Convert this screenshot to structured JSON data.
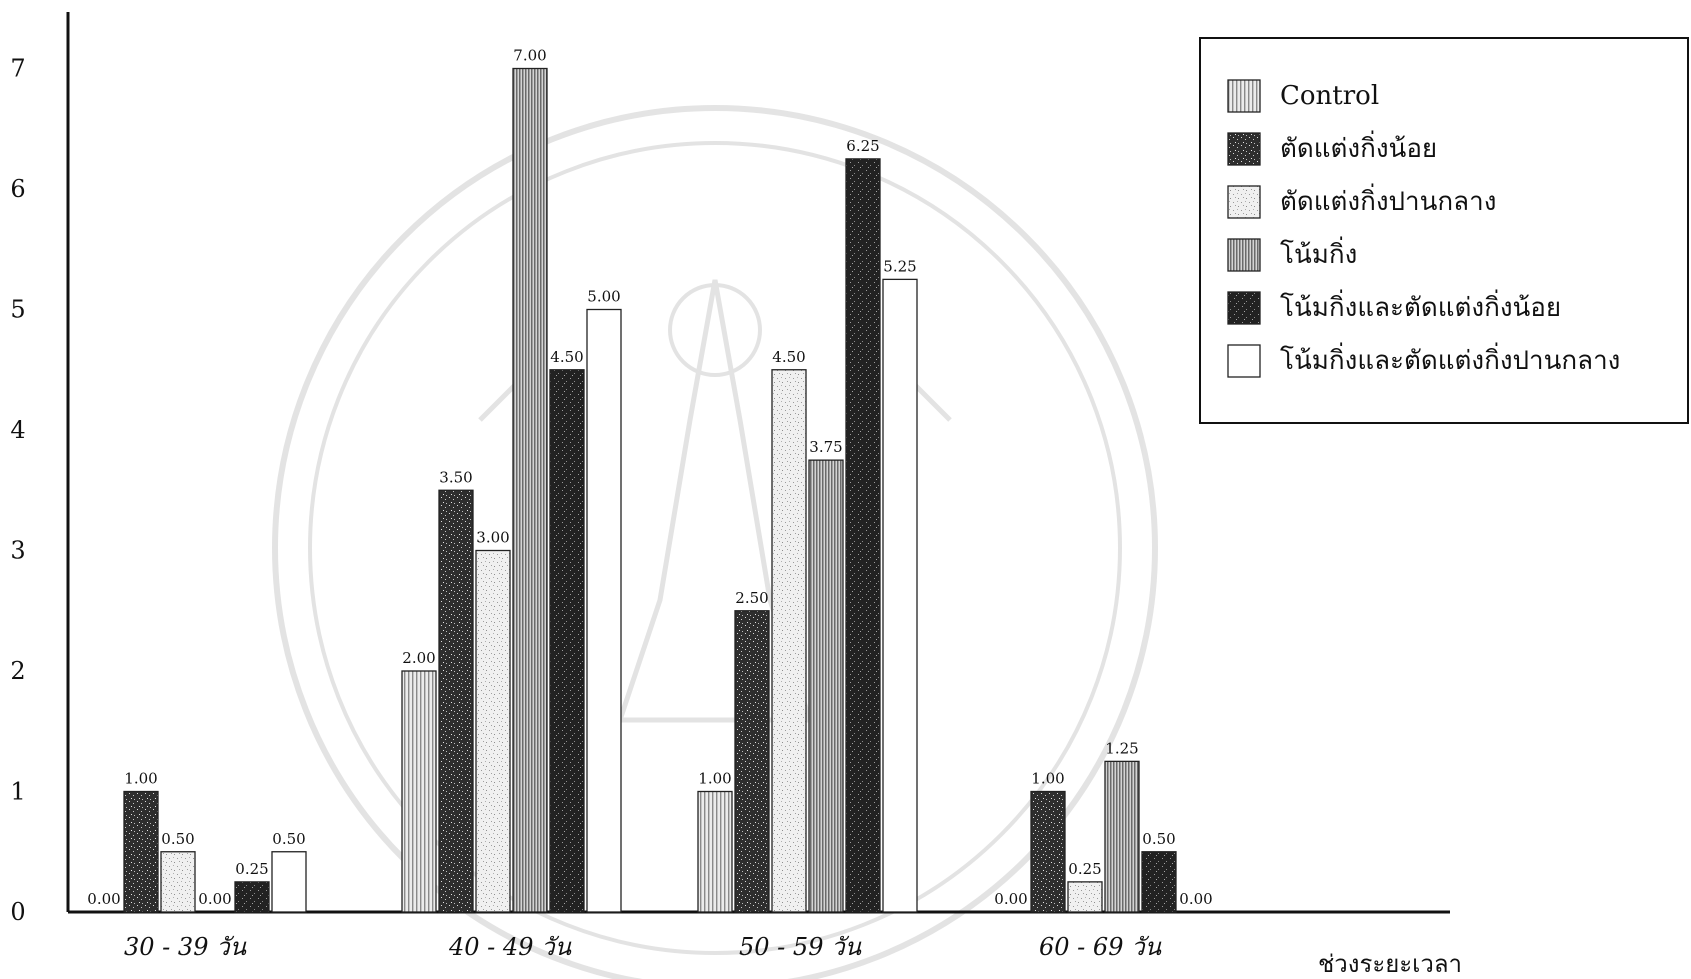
{
  "chart_data": {
    "type": "bar",
    "categories": [
      "30 - 39 วัน",
      "40 - 49 วัน",
      "50 - 59  วัน",
      "60 - 69  วัน"
    ],
    "xlabel": "ช่วงระยะเวลา",
    "ylabel": "",
    "ylim": [
      0,
      7.5
    ],
    "yticks": [
      "0",
      "1",
      "2",
      "3",
      "4",
      "5",
      "6",
      "7"
    ],
    "grid": false,
    "legend_position": "top-right",
    "series": [
      {
        "name": "Control",
        "values": [
          0.0,
          2.0,
          1.0,
          0.0
        ],
        "labels": [
          "0.00",
          "2.00",
          "1.00",
          "0.00"
        ],
        "pattern": "vstripe-light"
      },
      {
        "name": "ตัดแต่งกิ่งน้อย",
        "values": [
          1.0,
          3.5,
          2.5,
          1.0
        ],
        "labels": [
          "1.00",
          "3.50",
          "2.50",
          "1.00"
        ],
        "pattern": "speckle-dark"
      },
      {
        "name": "ตัดแต่งกิ่งปานกลาง",
        "values": [
          0.5,
          3.0,
          4.5,
          0.25
        ],
        "labels": [
          "0.50",
          "3.00",
          "4.50",
          "0.25"
        ],
        "pattern": "speckle-light"
      },
      {
        "name": "โน้มกิ่ง",
        "values": [
          0.0,
          7.0,
          3.75,
          1.25
        ],
        "labels": [
          "0.00",
          "7.00",
          "3.75",
          "1.25"
        ],
        "pattern": "vstripe-medium"
      },
      {
        "name": "โน้มกิ่งและตัดแต่งกิ่งน้อย",
        "values": [
          0.25,
          4.5,
          6.25,
          0.5
        ],
        "labels": [
          "0.25",
          "4.50",
          "6.25",
          "0.50"
        ],
        "pattern": "speckle-darker"
      },
      {
        "name": "โน้มกิ่งและตัดแต่งกิ่งปานกลาง",
        "values": [
          0.5,
          5.0,
          5.25,
          0.0
        ],
        "labels": [
          "0.50",
          "5.00",
          "5.25",
          "0.00"
        ],
        "pattern": "white"
      }
    ]
  }
}
